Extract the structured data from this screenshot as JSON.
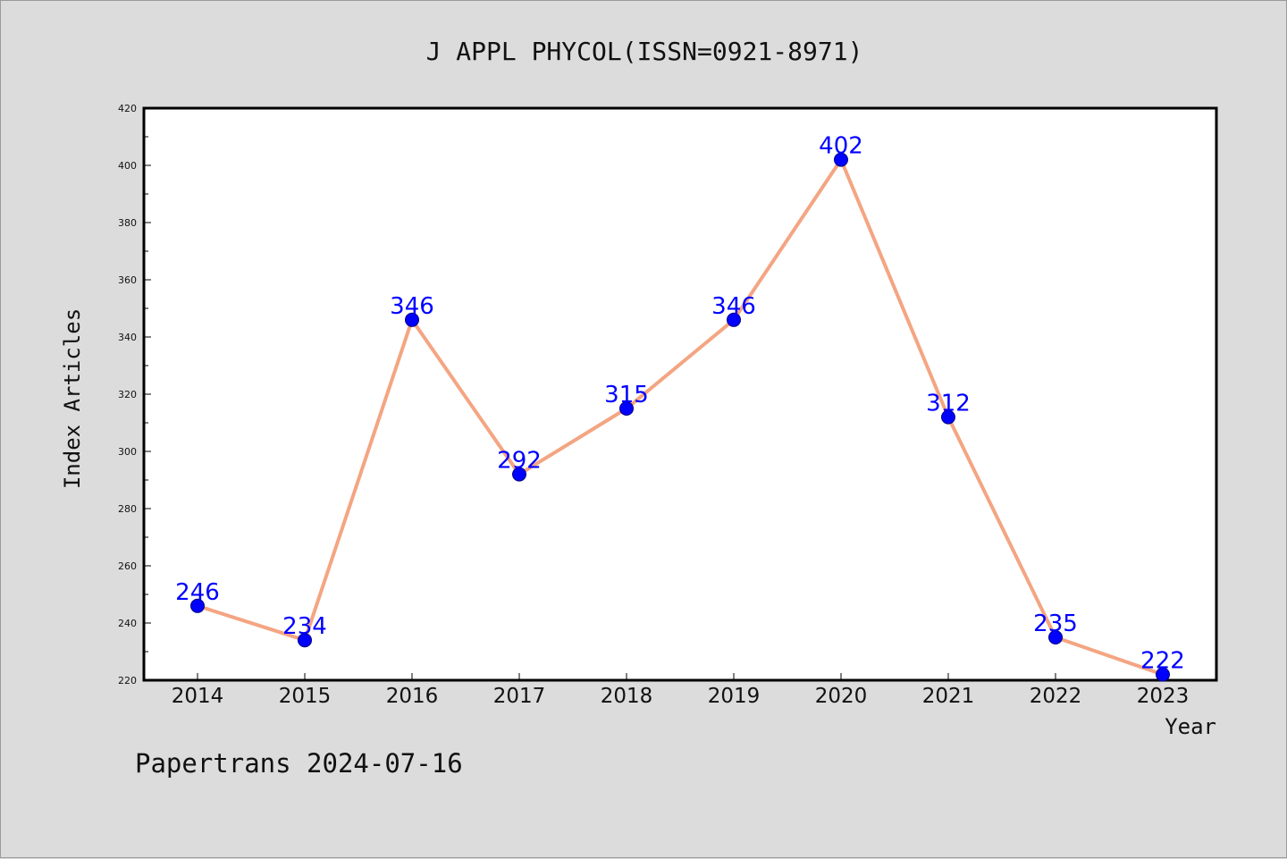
{
  "chart_data": {
    "type": "line",
    "title": "J APPL PHYCOL(ISSN=0921-8971)",
    "xlabel": "Year",
    "ylabel": "Index Articles",
    "categories": [
      "2014",
      "2015",
      "2016",
      "2017",
      "2018",
      "2019",
      "2020",
      "2021",
      "2022",
      "2023"
    ],
    "series": [
      {
        "values": [
          246,
          234,
          346,
          292,
          315,
          346,
          402,
          312,
          235,
          222
        ]
      }
    ],
    "data_labels": [
      "246",
      "234",
      "346",
      "292",
      "315",
      "346",
      "402",
      "312",
      "235",
      "222"
    ],
    "ylim": [
      220,
      420
    ],
    "yticks": [
      220,
      240,
      260,
      280,
      300,
      320,
      340,
      360,
      380,
      400,
      420
    ],
    "grid": false,
    "legend": "none",
    "colors": {
      "line": "#f4a582",
      "marker": "#0000ff",
      "marker_edge": "#000080",
      "label": "#0000ff",
      "background": "#dcdcdc",
      "plot_background": "#ffffff"
    }
  },
  "footer": "Papertrans 2024-07-16"
}
